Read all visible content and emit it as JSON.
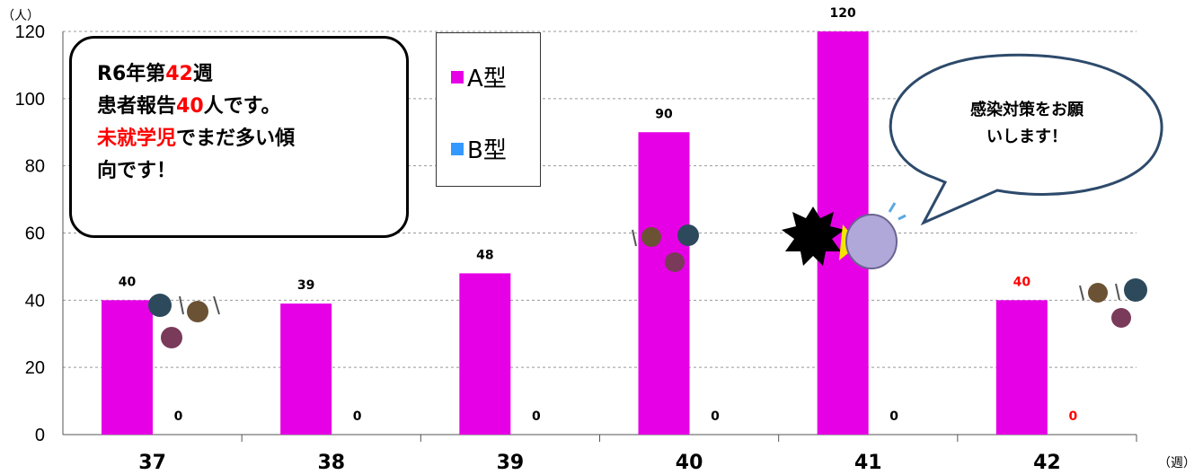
{
  "chart_data": {
    "type": "bar",
    "categories": [
      "37",
      "38",
      "39",
      "40",
      "41",
      "42"
    ],
    "series": [
      {
        "name": "A型",
        "values": [
          40,
          39,
          48,
          90,
          120,
          40
        ],
        "color": "#e600e6"
      },
      {
        "name": "B型",
        "values": [
          0,
          0,
          0,
          0,
          0,
          0
        ],
        "color": "#3399ff"
      }
    ],
    "highlight_category": "42",
    "highlight_color": "#ff0000",
    "ylim": [
      0,
      120
    ],
    "yticks": [
      0,
      20,
      40,
      60,
      80,
      100,
      120
    ],
    "y_unit": "（人）",
    "x_unit": "（週）",
    "grid": "horizontal-dashed",
    "legend_position": "top-left-inside"
  },
  "callout": {
    "line1_prefix": "R6年第",
    "line1_num": "42",
    "line1_suffix": "週",
    "line2_prefix": "患者報告",
    "line2_num": "40",
    "line2_suffix": "人です。",
    "line3_red": "未就学児",
    "line3_rest": "でまだ多い傾",
    "line4": "向です！"
  },
  "speech_bubble": {
    "line1": "感染対策をお願",
    "line2": "いします！"
  },
  "legend": {
    "a_label": "A型",
    "b_label": "B型"
  }
}
